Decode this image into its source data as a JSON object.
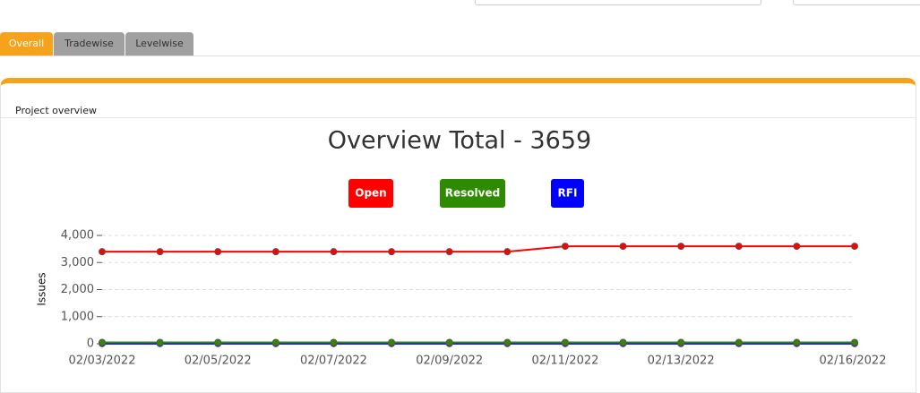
{
  "tabs": [
    "Overall",
    "Tradewise",
    "Levelwise"
  ],
  "panel": {
    "title": "Project overview"
  },
  "chart_data": {
    "type": "line",
    "title": "Overview Total - 3659",
    "y_label": "Issues",
    "categories": [
      "02/03/2022",
      null,
      "02/05/2022",
      null,
      "02/07/2022",
      null,
      "02/09/2022",
      null,
      "02/11/2022",
      null,
      "02/13/2022",
      null,
      null,
      "02/16/2022"
    ],
    "series": [
      {
        "name": "Open",
        "color": "#ff0000",
        "values": [
          3400,
          3400,
          3400,
          3400,
          3400,
          3400,
          3400,
          3400,
          3600,
          3600,
          3600,
          3600,
          3600,
          3600
        ]
      },
      {
        "name": "Resolved",
        "color": "#2e8b00",
        "values": [
          50,
          50,
          50,
          50,
          50,
          50,
          50,
          50,
          50,
          50,
          50,
          50,
          50,
          50
        ]
      },
      {
        "name": "RFI",
        "color": "#0000ff",
        "values": [
          5,
          5,
          5,
          5,
          5,
          5,
          5,
          5,
          5,
          5,
          5,
          5,
          5,
          5
        ]
      }
    ],
    "ylim": [
      0,
      4000
    ],
    "yticks": [
      0,
      {
        "value": 1000,
        "label": "1,000"
      },
      {
        "value": 2000,
        "label": "2,000"
      },
      {
        "value": 3000,
        "label": "3,000"
      },
      {
        "value": 4000,
        "label": "4,000"
      }
    ],
    "grid": true
  }
}
